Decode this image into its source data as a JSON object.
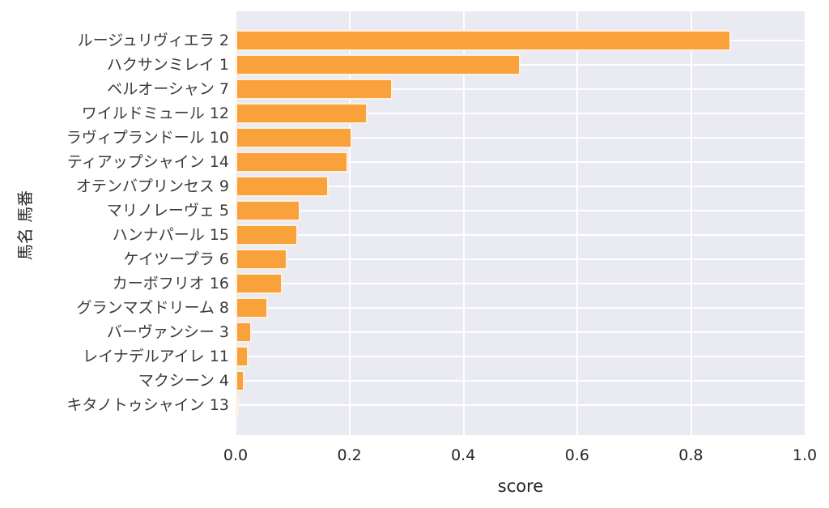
{
  "chart_data": {
    "type": "bar",
    "orientation": "horizontal",
    "title": "",
    "xlabel": "score",
    "ylabel": "馬名 馬番",
    "xlim": [
      0.0,
      1.0
    ],
    "x_ticks": [
      0.0,
      0.2,
      0.4,
      0.6,
      0.8,
      1.0
    ],
    "x_tick_labels": [
      "0.0",
      "0.2",
      "0.4",
      "0.6",
      "0.8",
      "1.0"
    ],
    "grid": true,
    "legend": false,
    "categories": [
      "ルージュリヴィエラ 2",
      "ハクサンミレイ 1",
      "ベルオーシャン 7",
      "ワイルドミュール 12",
      "ラヴィプランドール 10",
      "ティアップシャイン 14",
      "オテンバプリンセス 9",
      "マリノレーヴェ 5",
      "ハンナパール 15",
      "ケイツープラ 6",
      "カーボフリオ 16",
      "グランマズドリーム 8",
      "バーヴァンシー 3",
      "レイナデルアイレ 11",
      "マクシーン 4",
      "キタノトゥシャイン 13"
    ],
    "values": [
      0.87,
      0.5,
      0.275,
      0.232,
      0.205,
      0.198,
      0.163,
      0.113,
      0.109,
      0.091,
      0.082,
      0.057,
      0.028,
      0.023,
      0.016,
      0.006
    ]
  },
  "colors": {
    "bar_fill": "#f9a23c",
    "bar_edge": "rgba(255,255,255,0.85)",
    "plot_background": "#eaeaf2",
    "gridline": "#ffffff",
    "label_text": "#3a3a3a",
    "axis_text": "#262626"
  }
}
